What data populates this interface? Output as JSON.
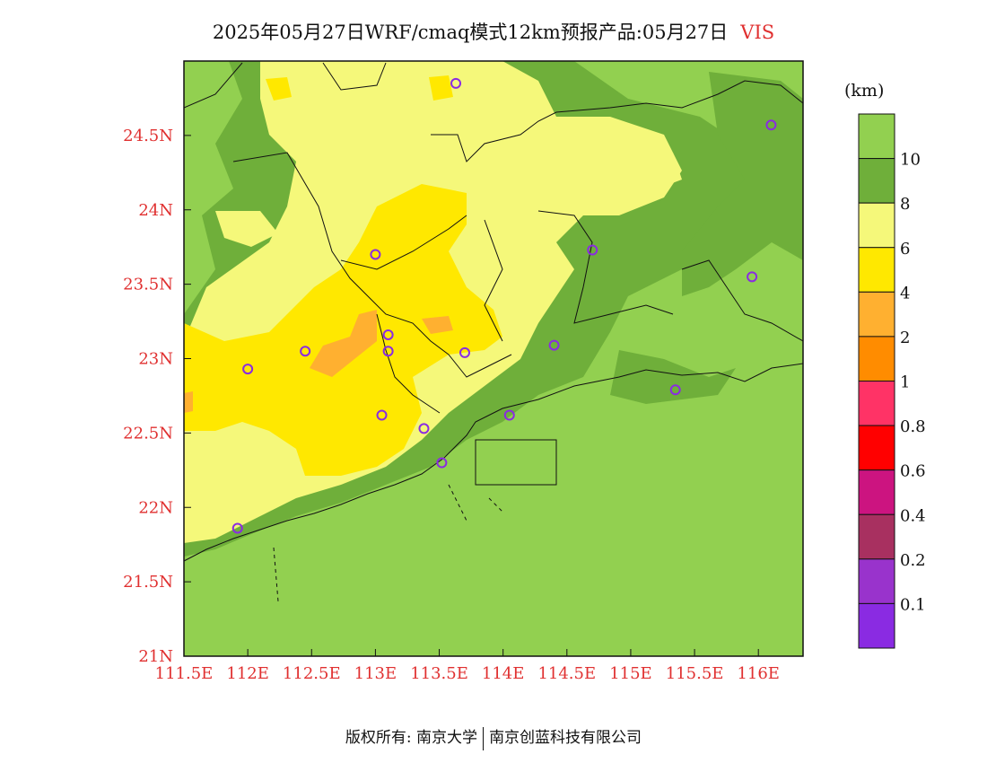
{
  "title": {
    "main": "2025年05月27日WRF/cmaq模式12km预报产品:05月27日",
    "variable": "VIS"
  },
  "colors": {
    "land_green": "#92d050",
    "dark_green": "#6faf3a",
    "light_yellow": "#f5f87a",
    "yellow": "#ffe800",
    "orange": "#ffb030",
    "station_marker": "#8a2be2",
    "tick_text": "#e03030"
  },
  "axes": {
    "lon_ticks": [
      "111.5E",
      "112E",
      "112.5E",
      "113E",
      "113.5E",
      "114E",
      "114.5E",
      "115E",
      "115.5E",
      "116E"
    ],
    "lat_ticks": [
      "24.5N",
      "24N",
      "23.5N",
      "23N",
      "22.5N",
      "22N",
      "21.5N",
      "21N"
    ]
  },
  "colorbar": {
    "unit": "(km)",
    "levels": [
      {
        "label": "",
        "color": "#92d050"
      },
      {
        "label": "10",
        "color": "#6faf3a"
      },
      {
        "label": "8",
        "color": "#f5f87a"
      },
      {
        "label": "6",
        "color": "#ffe800"
      },
      {
        "label": "4",
        "color": "#ffb030"
      },
      {
        "label": "2",
        "color": "#ff8c00"
      },
      {
        "label": "1",
        "color": "#ff3366"
      },
      {
        "label": "0.8",
        "color": "#ff0000"
      },
      {
        "label": "0.6",
        "color": "#cc1480"
      },
      {
        "label": "0.4",
        "color": "#a83060"
      },
      {
        "label": "0.2",
        "color": "#9933cc"
      },
      {
        "label": "0.1",
        "color": "#8a2be2"
      }
    ]
  },
  "stations": [
    {
      "lon": 113.63,
      "lat": 24.85
    },
    {
      "lon": 116.1,
      "lat": 24.57
    },
    {
      "lon": 113.0,
      "lat": 23.7
    },
    {
      "lon": 114.7,
      "lat": 23.73
    },
    {
      "lon": 115.95,
      "lat": 23.55
    },
    {
      "lon": 113.1,
      "lat": 23.16
    },
    {
      "lon": 112.45,
      "lat": 23.05
    },
    {
      "lon": 113.1,
      "lat": 23.05
    },
    {
      "lon": 113.7,
      "lat": 23.04
    },
    {
      "lon": 114.4,
      "lat": 23.09
    },
    {
      "lon": 112.0,
      "lat": 22.93
    },
    {
      "lon": 115.35,
      "lat": 22.79
    },
    {
      "lon": 113.05,
      "lat": 22.62
    },
    {
      "lon": 114.05,
      "lat": 22.62
    },
    {
      "lon": 113.38,
      "lat": 22.53
    },
    {
      "lon": 113.52,
      "lat": 22.3
    },
    {
      "lon": 111.92,
      "lat": 21.86
    }
  ],
  "footer": {
    "left": "版权所有: 南京大学",
    "right": "南京创蓝科技有限公司"
  }
}
